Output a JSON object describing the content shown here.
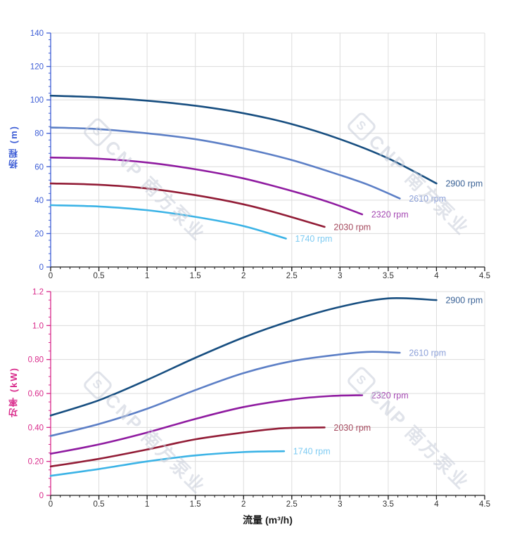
{
  "watermark": {
    "logo_glyph": "S",
    "text": "CNP 南方泵业"
  },
  "x_axis": {
    "title": "流量 (m³/h)",
    "min": 0,
    "max": 4.5,
    "major_step": 0.5,
    "minor_step": 0.1,
    "tick_labels": [
      "0",
      "0.5",
      "1",
      "1.5",
      "2",
      "2.5",
      "3",
      "3.5",
      "4",
      "4.5"
    ]
  },
  "chart_data": [
    {
      "type": "line",
      "title": "",
      "xlabel": "流量 (m³/h)",
      "ylabel": "扬程 (m)",
      "xlim": [
        0,
        4.5
      ],
      "ylim": [
        0,
        140
      ],
      "grid": true,
      "legend_position": "curve-end",
      "axis_color": "#3e5ed6",
      "y_major_step": 20,
      "y_minor_step": 4,
      "y_ticks": [
        {
          "v": 0,
          "label": "0"
        },
        {
          "v": 20,
          "label": "20"
        },
        {
          "v": 40,
          "label": "40"
        },
        {
          "v": 60,
          "label": "60"
        },
        {
          "v": 80,
          "label": "80"
        },
        {
          "v": 100,
          "label": "100"
        },
        {
          "v": 120,
          "label": "120"
        },
        {
          "v": 140,
          "label": "140"
        }
      ],
      "series": [
        {
          "name": "2900 rpm",
          "color": "#174e80",
          "label_color": "#3a6296",
          "points": [
            [
              0,
              102.5
            ],
            [
              0.5,
              101.5
            ],
            [
              1,
              99.5
            ],
            [
              1.5,
              96.5
            ],
            [
              2,
              92
            ],
            [
              2.5,
              85.5
            ],
            [
              3,
              76.5
            ],
            [
              3.5,
              65
            ],
            [
              4,
              50
            ]
          ]
        },
        {
          "name": "2610 rpm",
          "color": "#5c7fc6",
          "label_color": "#8da1d9",
          "points": [
            [
              0,
              83.5
            ],
            [
              0.5,
              82.5
            ],
            [
              1,
              80
            ],
            [
              1.5,
              76.5
            ],
            [
              2,
              71
            ],
            [
              2.5,
              64
            ],
            [
              3,
              55
            ],
            [
              3.3,
              49
            ],
            [
              3.62,
              41
            ]
          ]
        },
        {
          "name": "2320 rpm",
          "color": "#8f1ba0",
          "label_color": "#a64bb4",
          "points": [
            [
              0,
              65.5
            ],
            [
              0.5,
              64.8
            ],
            [
              1,
              62.5
            ],
            [
              1.5,
              58.5
            ],
            [
              2,
              53
            ],
            [
              2.5,
              45.5
            ],
            [
              2.9,
              38.5
            ],
            [
              3.23,
              31.5
            ]
          ]
        },
        {
          "name": "2030 rpm",
          "color": "#921c36",
          "label_color": "#a54a5e",
          "points": [
            [
              0,
              50
            ],
            [
              0.5,
              49.2
            ],
            [
              1,
              47
            ],
            [
              1.5,
              43
            ],
            [
              2,
              37.5
            ],
            [
              2.4,
              31.5
            ],
            [
              2.84,
              24
            ]
          ]
        },
        {
          "name": "1740 rpm",
          "color": "#3bb3e6",
          "label_color": "#7ecbf2",
          "points": [
            [
              0,
              37
            ],
            [
              0.5,
              36.2
            ],
            [
              1,
              34
            ],
            [
              1.5,
              30
            ],
            [
              2,
              24.5
            ],
            [
              2.44,
              17
            ]
          ]
        }
      ]
    },
    {
      "type": "line",
      "title": "",
      "xlabel": "流量 (m³/h)",
      "ylabel": "功率 (kW)",
      "xlim": [
        0,
        4.5
      ],
      "ylim": [
        0,
        1.2
      ],
      "grid": true,
      "legend_position": "curve-end",
      "axis_color": "#d92a8b",
      "y_major_step": 0.2,
      "y_minor_step": 0.05,
      "y_ticks": [
        {
          "v": 0,
          "label": "0"
        },
        {
          "v": 0.2,
          "label": "0.20"
        },
        {
          "v": 0.4,
          "label": "0.40"
        },
        {
          "v": 0.6,
          "label": "0.60"
        },
        {
          "v": 0.8,
          "label": "0.80"
        },
        {
          "v": 1.0,
          "label": "1.0"
        },
        {
          "v": 1.2,
          "label": "1.2"
        }
      ],
      "series": [
        {
          "name": "2900 rpm",
          "color": "#174e80",
          "label_color": "#3a6296",
          "points": [
            [
              0,
              0.47
            ],
            [
              0.5,
              0.56
            ],
            [
              1,
              0.68
            ],
            [
              1.5,
              0.81
            ],
            [
              2,
              0.93
            ],
            [
              2.5,
              1.03
            ],
            [
              3,
              1.11
            ],
            [
              3.5,
              1.16
            ],
            [
              4,
              1.15
            ]
          ]
        },
        {
          "name": "2610 rpm",
          "color": "#5c7fc6",
          "label_color": "#8da1d9",
          "points": [
            [
              0,
              0.35
            ],
            [
              0.5,
              0.42
            ],
            [
              1,
              0.51
            ],
            [
              1.5,
              0.62
            ],
            [
              2,
              0.72
            ],
            [
              2.5,
              0.79
            ],
            [
              3,
              0.83
            ],
            [
              3.3,
              0.845
            ],
            [
              3.62,
              0.84
            ]
          ]
        },
        {
          "name": "2320 rpm",
          "color": "#8f1ba0",
          "label_color": "#a64bb4",
          "points": [
            [
              0,
              0.245
            ],
            [
              0.5,
              0.3
            ],
            [
              1,
              0.37
            ],
            [
              1.5,
              0.45
            ],
            [
              2,
              0.52
            ],
            [
              2.5,
              0.565
            ],
            [
              2.9,
              0.585
            ],
            [
              3.23,
              0.59
            ]
          ]
        },
        {
          "name": "2030 rpm",
          "color": "#921c36",
          "label_color": "#a54a5e",
          "points": [
            [
              0,
              0.17
            ],
            [
              0.5,
              0.215
            ],
            [
              1,
              0.27
            ],
            [
              1.5,
              0.33
            ],
            [
              2,
              0.37
            ],
            [
              2.4,
              0.395
            ],
            [
              2.84,
              0.4
            ]
          ]
        },
        {
          "name": "1740 rpm",
          "color": "#3bb3e6",
          "label_color": "#7ecbf2",
          "points": [
            [
              0,
              0.115
            ],
            [
              0.5,
              0.155
            ],
            [
              1,
              0.2
            ],
            [
              1.5,
              0.235
            ],
            [
              2,
              0.255
            ],
            [
              2.42,
              0.26
            ]
          ]
        }
      ]
    }
  ]
}
